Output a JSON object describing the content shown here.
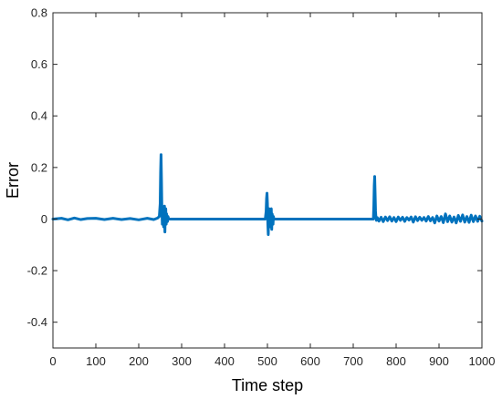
{
  "chart_data": {
    "type": "line",
    "title": "",
    "xlabel": "Time step",
    "ylabel": "Error",
    "xlim": [
      0,
      1000
    ],
    "ylim": [
      -0.5,
      0.8
    ],
    "xticks": [
      "0",
      "100",
      "200",
      "300",
      "400",
      "500",
      "600",
      "700",
      "800",
      "900",
      "1000"
    ],
    "yticks": [
      "-0.4",
      "-0.2",
      "0",
      "0.2",
      "0.4",
      "0.6",
      "0.8"
    ],
    "grid": false,
    "legend": "none",
    "series": [
      {
        "color": "#0072BD",
        "x": [
          0,
          20,
          35,
          50,
          65,
          80,
          100,
          120,
          140,
          160,
          180,
          200,
          220,
          235,
          244,
          248,
          250,
          251,
          252,
          253,
          254,
          255,
          256,
          257,
          258,
          259,
          260,
          261,
          262,
          263,
          264,
          265,
          266,
          267,
          268,
          270,
          280,
          300,
          350,
          400,
          450,
          495,
          497,
          498,
          499,
          500,
          501,
          502,
          503,
          504,
          505,
          506,
          507,
          508,
          509,
          510,
          511,
          512,
          513,
          514,
          515,
          520,
          540,
          600,
          650,
          700,
          740,
          747,
          748,
          749,
          750,
          751,
          752,
          753,
          754,
          756,
          760,
          765,
          770,
          775,
          780,
          785,
          790,
          795,
          800,
          805,
          810,
          815,
          820,
          825,
          830,
          835,
          840,
          845,
          850,
          855,
          860,
          865,
          870,
          875,
          880,
          885,
          890,
          895,
          900,
          905,
          910,
          915,
          920,
          925,
          930,
          935,
          940,
          945,
          950,
          955,
          960,
          965,
          970,
          975,
          980,
          985,
          990,
          995,
          1000
        ],
        "y": [
          0,
          0.003,
          -0.003,
          0.004,
          -0.002,
          0.002,
          0.003,
          -0.002,
          0.003,
          -0.002,
          0.002,
          -0.003,
          0.003,
          -0.002,
          0.004,
          0.01,
          0.06,
          0.18,
          0.25,
          0.15,
          0.03,
          -0.02,
          0.02,
          0.04,
          -0.03,
          0.01,
          0.05,
          -0.05,
          0.03,
          0.04,
          -0.02,
          0.02,
          0,
          -0.01,
          0.01,
          0,
          0,
          0,
          0,
          0,
          0,
          0,
          0.03,
          0.08,
          0.1,
          0.06,
          -0.02,
          -0.06,
          0.03,
          0.04,
          -0.03,
          0.02,
          -0.03,
          0.03,
          0.04,
          -0.04,
          0.02,
          0.01,
          -0.02,
          0.01,
          0,
          0,
          0,
          0,
          0,
          0,
          0,
          0,
          0.05,
          0.13,
          0.165,
          0.1,
          0.03,
          0.005,
          -0.005,
          0.006,
          -0.008,
          0.007,
          -0.01,
          0.008,
          -0.006,
          0.009,
          -0.008,
          0.006,
          -0.01,
          0.008,
          -0.005,
          0.007,
          -0.009,
          0.006,
          -0.004,
          0.008,
          -0.012,
          0.009,
          -0.006,
          0.007,
          -0.005,
          0.006,
          -0.008,
          0.01,
          -0.007,
          0.006,
          -0.015,
          0.012,
          -0.008,
          0.01,
          -0.014,
          0.02,
          -0.01,
          0.012,
          -0.012,
          0.008,
          -0.015,
          0.014,
          -0.009,
          0.016,
          -0.012,
          0.01,
          -0.013,
          0.015,
          -0.01,
          0.012,
          -0.009,
          0.011,
          -0.008
        ]
      }
    ]
  }
}
